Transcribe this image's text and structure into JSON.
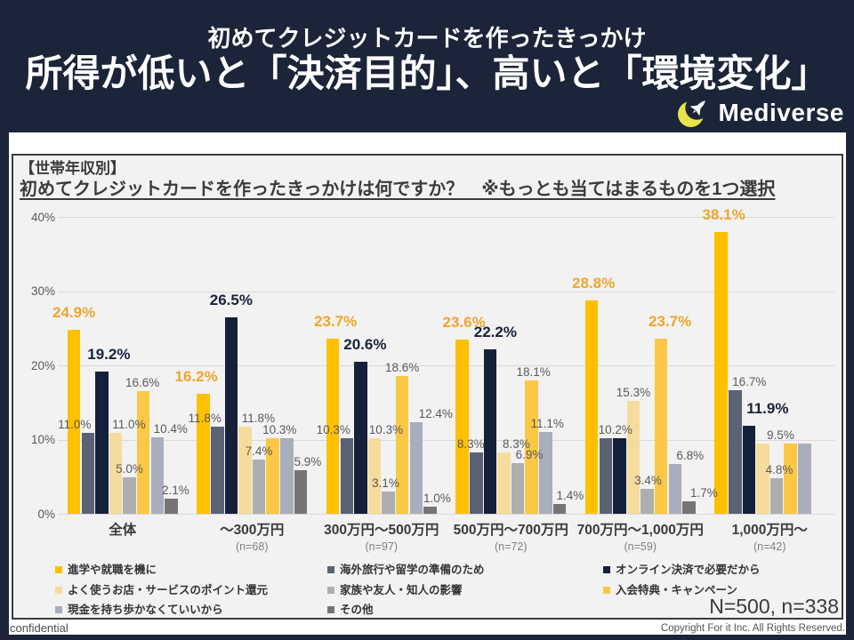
{
  "header": {
    "subtitle": "初めてクレジットカードを作ったきっかけ",
    "title": "所得が低いと「決済目的」、高いと「環境変化」",
    "logo_text": "Mediverse",
    "logo_icon": "crescent-rocket-icon",
    "logo_crescent_color": "#E9E44C"
  },
  "panel": {
    "heading_line1": "【世帯年収別】",
    "heading_line2": "初めてクレジットカードを作ったきっかけは何ですか？　※もっとも当てはまるものを1つ選択",
    "sample_note": "N=500, n=338"
  },
  "footer": {
    "left": "confidential",
    "right": "Copyright For it Inc. All Rights Reserved."
  },
  "colors": {
    "frame_navy": "#1B2438",
    "panel_bg": "#F2F2F2",
    "grid": "#D9D9D9",
    "label_gray": "#595959",
    "label_gold": "#EDA62D",
    "label_navy": "#18223C"
  },
  "chart_data": {
    "type": "bar",
    "title": "【世帯年収別】初めてクレジットカードを作ったきっかけは何ですか？　※もっとも当てはまるものを1つ選択",
    "xlabel": "",
    "ylabel": "",
    "unit": "%",
    "ylim": [
      0,
      40
    ],
    "grid": true,
    "legend_position": "bottom",
    "y_ticks": [
      {
        "label": "40%",
        "value": 40
      },
      {
        "label": "30%",
        "value": 30
      },
      {
        "label": "20%",
        "value": 20
      },
      {
        "label": "10%",
        "value": 10
      },
      {
        "label": "0%",
        "value": 0
      }
    ],
    "series": [
      {
        "name": "進学や就職を機に",
        "color": "#FFC000",
        "label_style": "gold"
      },
      {
        "name": "海外旅行や留学の準備のため",
        "color": "#5A6274",
        "label_style": "gray"
      },
      {
        "name": "オンライン決済で必要だから",
        "color": "#15203A",
        "label_style": "navy"
      },
      {
        "name": "よく使うお店・サービスのポイント還元",
        "color": "#F6DC9C",
        "label_style": "gray"
      },
      {
        "name": "家族や友人・知人の影響",
        "color": "#AEAEAE",
        "label_style": "gray"
      },
      {
        "name": "入会特典・キャンペーン",
        "color": "#FBC845",
        "label_style": "gray"
      },
      {
        "name": "現金を持ち歩かなくていいから",
        "color": "#A8AEBB",
        "label_style": "gray"
      },
      {
        "name": "その他",
        "color": "#757575",
        "label_style": "gray"
      }
    ],
    "groups": [
      {
        "name": "全体",
        "n": "",
        "values": [
          24.9,
          11.0,
          19.2,
          11.0,
          5.0,
          16.6,
          10.4,
          2.1
        ],
        "labels": [
          {
            "dx": 0
          },
          {
            "dx": -15
          },
          {
            "dx": 8
          },
          {
            "dx": 15
          },
          {
            "dx": 0
          },
          {
            "dx": -1
          },
          {
            "dx": 15
          },
          {
            "dx": 5
          }
        ]
      },
      {
        "name": "～300万円",
        "n": "(n=68)",
        "values": [
          16.2,
          11.8,
          26.5,
          11.8,
          7.4,
          10.3,
          10.3,
          5.9
        ],
        "labels": [
          {
            "dx": -8
          },
          {
            "dx": -14
          },
          {
            "dx": 0
          },
          {
            "dx": 15
          },
          {
            "dx": 0
          },
          null,
          {
            "dx": -8
          },
          {
            "dx": 8
          }
        ]
      },
      {
        "name": "300万円～500万円",
        "n": "(n=97)",
        "values": [
          23.7,
          10.3,
          20.6,
          10.3,
          3.1,
          18.6,
          12.4,
          1.0
        ],
        "labels": [
          {
            "dx": 3
          },
          {
            "dx": -15
          },
          {
            "dx": 5
          },
          {
            "dx": 13
          },
          {
            "dx": -3
          },
          {
            "dx": 0
          },
          {
            "dx": 22
          },
          {
            "dx": 8
          }
        ]
      },
      {
        "name": "500万円～700万円",
        "n": "(n=72)",
        "values": [
          23.6,
          8.3,
          22.2,
          8.3,
          6.9,
          18.1,
          11.1,
          1.4
        ],
        "labels": [
          {
            "dx": 2
          },
          {
            "dx": -6
          },
          {
            "dx": 6
          },
          {
            "dx": 14
          },
          {
            "dx": 13
          },
          {
            "dx": 2
          },
          {
            "dx": 2
          },
          {
            "dx": 12
          }
        ]
      },
      {
        "name": "700万円～1,000万円",
        "n": "(n=59)",
        "values": [
          28.8,
          10.2,
          10.2,
          15.3,
          3.4,
          23.7,
          6.8,
          1.7
        ],
        "labels": [
          {
            "dx": 2
          },
          {
            "dx": 11
          },
          null,
          {
            "dx": 0
          },
          {
            "dx": 1
          },
          {
            "dx": 10,
            "style": "gold"
          },
          {
            "dx": 17
          },
          {
            "dx": 17
          }
        ]
      },
      {
        "name": "1,000万円～",
        "n": "(n=42)",
        "values": [
          38.1,
          16.7,
          11.9,
          9.5,
          4.8,
          9.5,
          9.5,
          0.0
        ],
        "labels": [
          {
            "dx": 3
          },
          {
            "dx": 16
          },
          {
            "dx": 21
          },
          {
            "dx": 20
          },
          {
            "dx": 3
          },
          null,
          null,
          null
        ]
      }
    ]
  }
}
